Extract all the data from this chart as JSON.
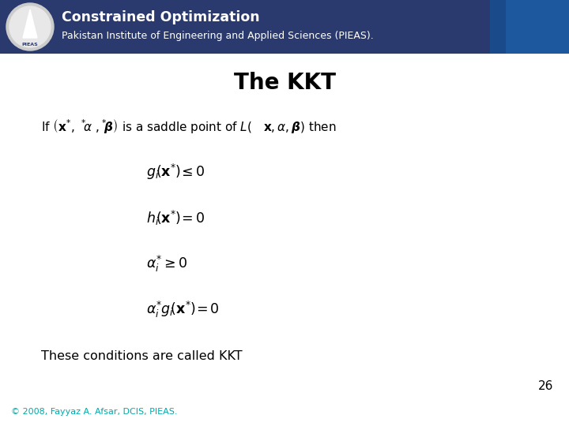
{
  "title": "The KKT",
  "header_title": "Constrained Optimization",
  "header_subtitle": "Pakistan Institute of Engineering and Applied Sciences (PIEAS).",
  "header_bg_color": "#2B3A6E",
  "header_text_color": "#FFFFFF",
  "page_bg_color": "#FFFFFF",
  "slide_number": "26",
  "footer_text": "© 2008, Fayyaz A. Afsar, DCIS, PIEAS.",
  "footer_color": "#00AAAA",
  "slide_number_color": "#000000",
  "title_color": "#000000",
  "body_color": "#000000"
}
